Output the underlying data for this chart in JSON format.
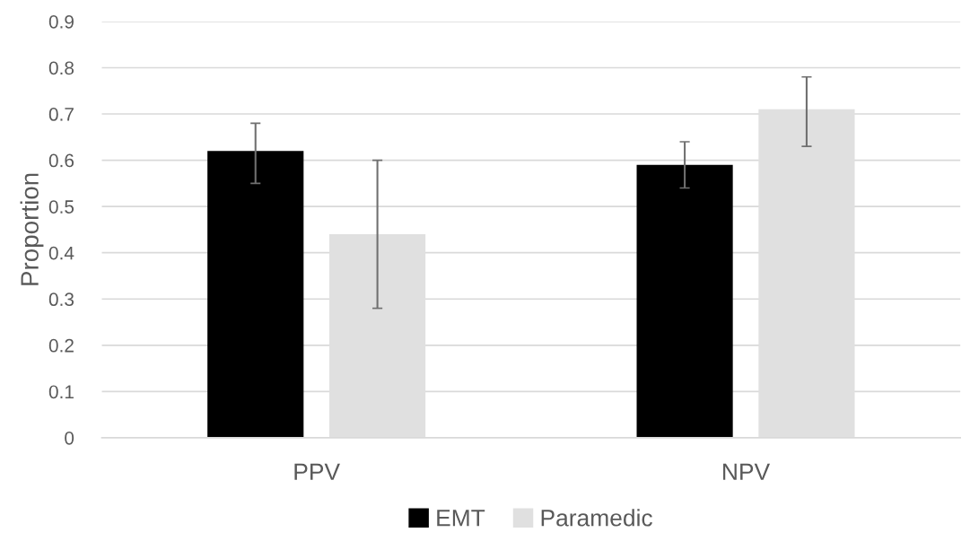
{
  "chart_data": {
    "type": "bar",
    "ylabel": "Proportion",
    "categories": [
      "PPV",
      "NPV"
    ],
    "series": [
      {
        "name": "EMT",
        "color": "#000000",
        "values": [
          0.62,
          0.59
        ],
        "errors": [
          [
            0.55,
            0.68
          ],
          [
            0.54,
            0.64
          ]
        ]
      },
      {
        "name": "Paramedic",
        "color": "#e0e0e0",
        "values": [
          0.44,
          0.71
        ],
        "errors": [
          [
            0.28,
            0.6
          ],
          [
            0.63,
            0.78
          ]
        ]
      }
    ],
    "ylim": [
      0,
      0.9
    ],
    "yticks": [
      0,
      0.1,
      0.2,
      0.3,
      0.4,
      0.5,
      0.6,
      0.7,
      0.8,
      0.9
    ],
    "grid": "y",
    "legend": "bottom"
  }
}
